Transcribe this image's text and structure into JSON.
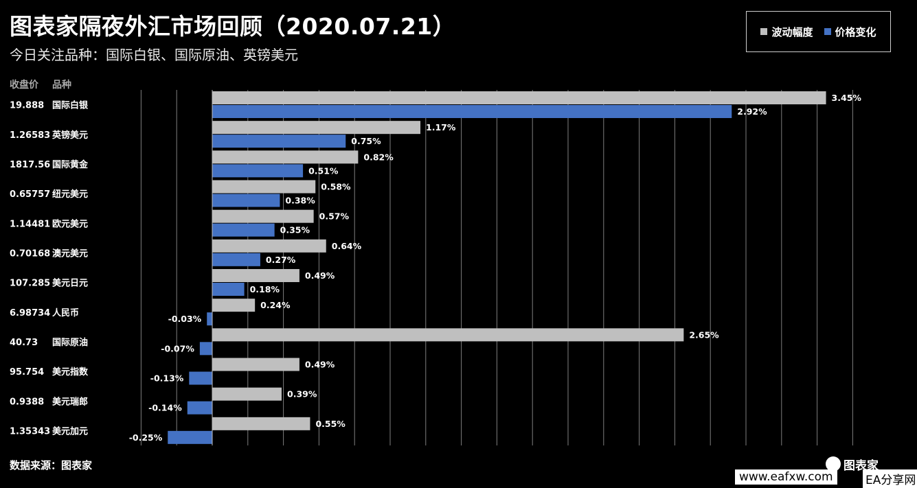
{
  "header": {
    "title": "图表家隔夜外汇市场回顾（2020.07.21）",
    "subtitle": "今日关注品种：国际白银、国际原油、英镑美元"
  },
  "columns": {
    "close_label": "收盘价",
    "name_label": "品种"
  },
  "footer": {
    "source": "数据来源：图表家",
    "watermark_site": "www.eafxw.com",
    "watermark_logo": "图表家",
    "watermark_ea": "EA分享网"
  },
  "colors": {
    "volatility": "#BFBFBF",
    "change": "#4472C4",
    "background": "#000000",
    "gridline": "#7f7f7f"
  },
  "chart_data": {
    "type": "bar",
    "orientation": "horizontal",
    "legend": [
      "波动幅度",
      "价格变化"
    ],
    "legend_position": "top-right",
    "grid": true,
    "xlim": [
      -0.6,
      3.8
    ],
    "categories": [
      {
        "close": "19.888",
        "name": "国际白银"
      },
      {
        "close": "1.26583",
        "name": "英镑美元"
      },
      {
        "close": "1817.56",
        "name": "国际黄金"
      },
      {
        "close": "0.65757",
        "name": "纽元美元"
      },
      {
        "close": "1.14481",
        "name": "欧元美元"
      },
      {
        "close": "0.70168",
        "name": "澳元美元"
      },
      {
        "close": "107.285",
        "name": "美元日元"
      },
      {
        "close": "6.98734",
        "name": "人民币"
      },
      {
        "close": "40.73",
        "name": "国际原油"
      },
      {
        "close": "95.754",
        "name": "美元指数"
      },
      {
        "close": "0.9388",
        "name": "美元瑞郎"
      },
      {
        "close": "1.35343",
        "name": "美元加元"
      }
    ],
    "series": [
      {
        "name": "波动幅度",
        "values": [
          3.45,
          1.17,
          0.82,
          0.58,
          0.57,
          0.64,
          0.49,
          0.24,
          2.65,
          0.49,
          0.39,
          0.55
        ],
        "labels": [
          "3.45%",
          "1.17%",
          "0.82%",
          "0.58%",
          "0.57%",
          "0.64%",
          "0.49%",
          "0.24%",
          "2.65%",
          "0.49%",
          "0.39%",
          "0.55%"
        ]
      },
      {
        "name": "价格变化",
        "values": [
          2.92,
          0.75,
          0.51,
          0.38,
          0.35,
          0.27,
          0.18,
          -0.03,
          -0.07,
          -0.13,
          -0.14,
          -0.25
        ],
        "labels": [
          "2.92%",
          "0.75%",
          "0.51%",
          "0.38%",
          "0.35%",
          "0.27%",
          "0.18%",
          "-0.03%",
          "-0.07%",
          "-0.13%",
          "-0.14%",
          "-0.25%"
        ]
      }
    ]
  }
}
